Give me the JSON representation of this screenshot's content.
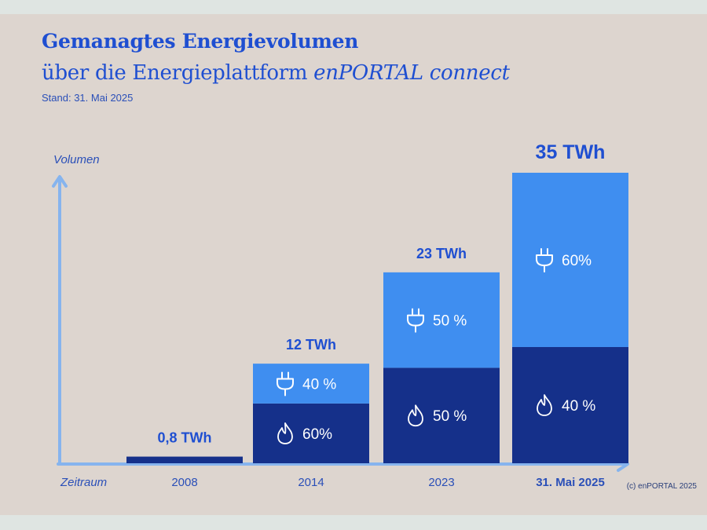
{
  "header": {
    "title": "Gemanagtes Energievolumen",
    "subtitle_prefix": "über die Energieplattform ",
    "subtitle_brand": "enPORTAL connect",
    "stand": "Stand: 31. Mai 2025"
  },
  "footer": {
    "copyright": "(c) enPORTAL 2025"
  },
  "colors": {
    "electricity": "#3f8ef0",
    "gas": "#15308a",
    "axis": "#86b4ee",
    "text": "#1f4fd1",
    "background": "#ddd5cf"
  },
  "icons": {
    "electricity": "plug-icon",
    "gas": "flame-icon"
  },
  "chart_data": {
    "type": "bar",
    "stacked": true,
    "title": "Gemanagtes Energievolumen",
    "xlabel": "Zeitraum",
    "ylabel": "Volumen",
    "unit": "TWh",
    "ylim": [
      0,
      35
    ],
    "grid": false,
    "categories": [
      "2008",
      "2014",
      "2023",
      "31. Mai 2025"
    ],
    "totals": [
      0.8,
      12,
      23,
      35
    ],
    "total_labels": [
      "0,8 TWh",
      "12 TWh",
      "23 TWh",
      "35 TWh"
    ],
    "series": [
      {
        "key": "gas",
        "icon": "flame-icon",
        "share_labels": [
          "",
          "60%",
          "50 %",
          "40 %"
        ],
        "values": [
          0.8,
          7.2,
          11.5,
          14
        ]
      },
      {
        "key": "electricity",
        "icon": "plug-icon",
        "share_labels": [
          "",
          "40  %",
          "50 %",
          "60%"
        ],
        "values": [
          0,
          4.8,
          11.5,
          21
        ]
      }
    ]
  }
}
